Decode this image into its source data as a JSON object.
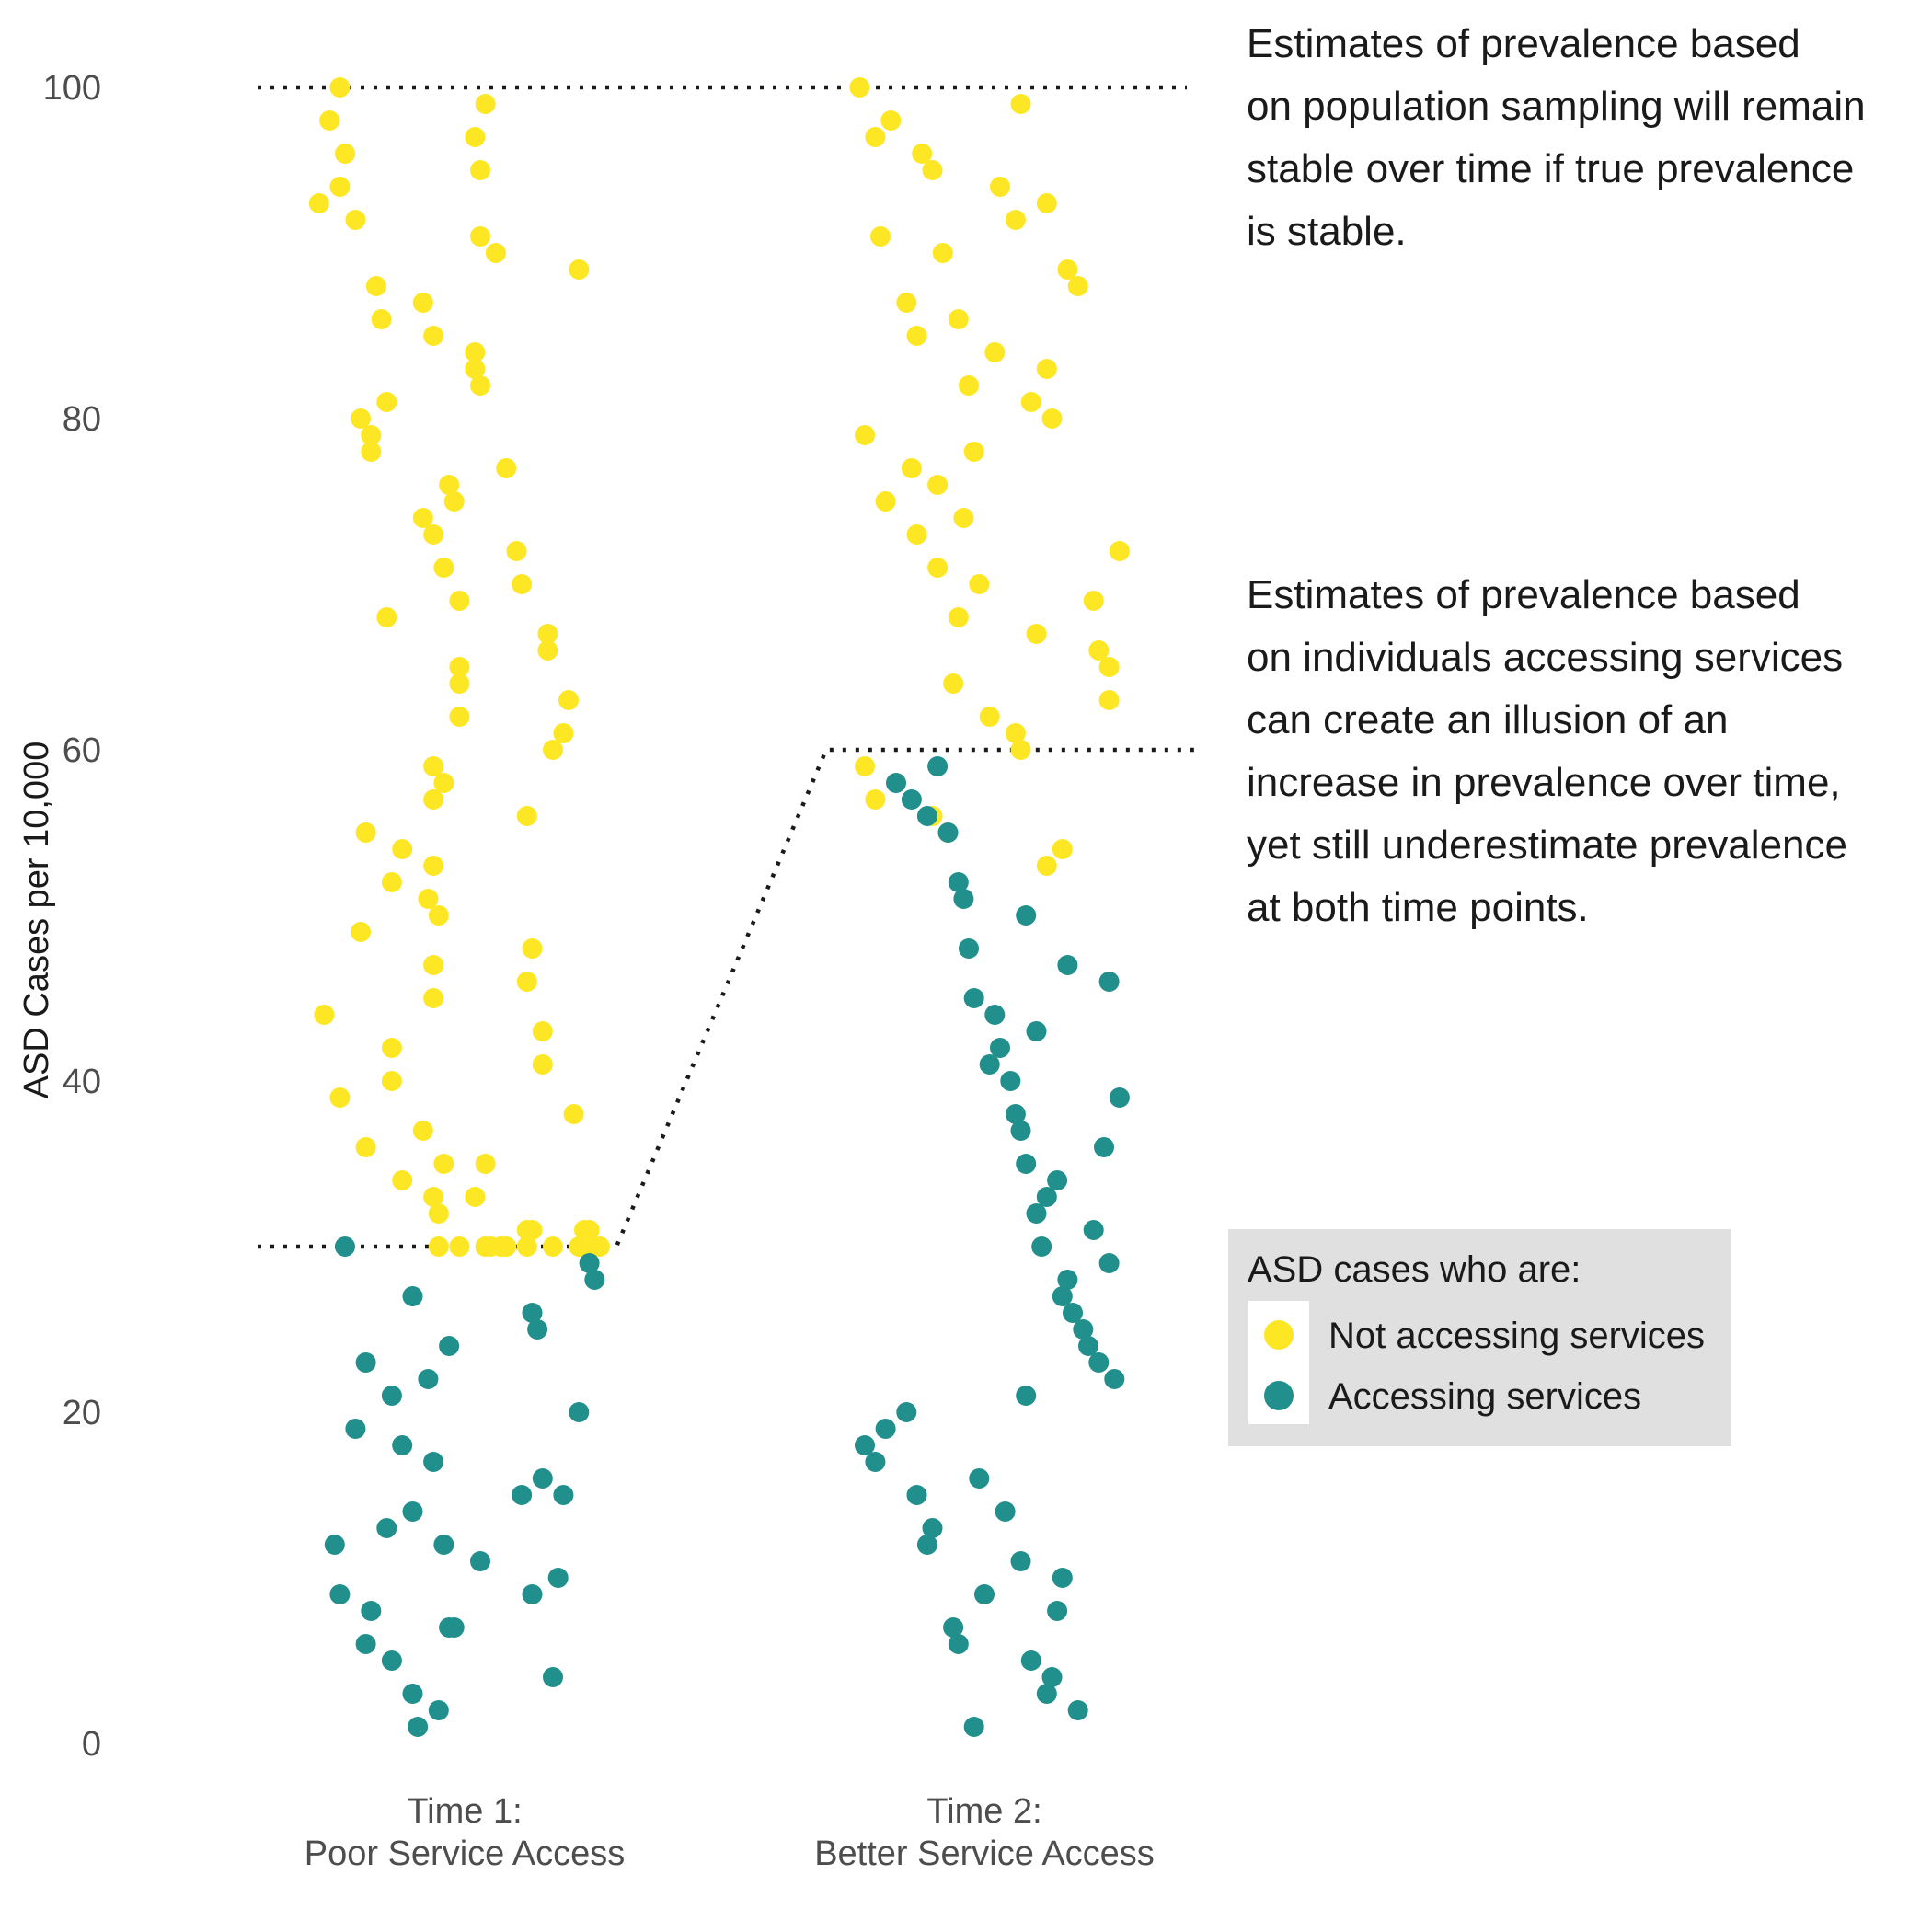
{
  "chart_data": {
    "type": "scatter",
    "ylabel": "ASD Cases per 10,000",
    "xlabel": "",
    "ylim": [
      0,
      100
    ],
    "yticks": [
      0,
      20,
      40,
      60,
      80,
      100
    ],
    "grid": false,
    "categories": [
      {
        "line1": "Time 1:",
        "line2": "Poor Service Access"
      },
      {
        "line1": "Time 2:",
        "line2": "Better Service Access"
      }
    ],
    "colors": {
      "not_accessing": "#fde725",
      "accessing": "#21908c"
    },
    "reference_lines": {
      "true_prevalence": 100,
      "time1_service_estimate": 30,
      "time2_service_estimate": 60
    },
    "annotations": [
      [
        "Estimates of prevalence based",
        "on population sampling will remain",
        "stable over time if true prevalence",
        "is stable."
      ],
      [
        "Estimates of prevalence based",
        "on individuals accessing services",
        "can create an illusion of an",
        "increase in prevalence over time,",
        "yet still underestimate prevalence",
        "at both time points."
      ]
    ],
    "legend": {
      "title": "ASD cases who are:",
      "placement": "right",
      "entries": [
        {
          "label": "Not accessing services",
          "color": "#fde725"
        },
        {
          "label": "Accessing services",
          "color": "#21908c"
        }
      ]
    },
    "series": [
      {
        "name": "Not accessing services",
        "category": 0,
        "x": [
          -0.26,
          -0.23,
          -0.24,
          -0.28,
          -0.21,
          -0.17,
          -0.16,
          -0.15,
          -0.24,
          -0.2,
          -0.18,
          -0.18,
          -0.15,
          -0.19,
          -0.12,
          -0.14,
          -0.2,
          -0.27,
          -0.24,
          -0.19,
          -0.14,
          -0.14,
          -0.12,
          -0.06,
          -0.05,
          -0.04,
          -0.06,
          -0.04,
          -0.06,
          -0.03,
          -0.02,
          -0.08,
          -0.06,
          -0.04,
          -0.01,
          -0.01,
          -0.01,
          -0.01,
          -0.06,
          -0.07,
          -0.05,
          -0.06,
          -0.06,
          -0.08,
          -0.08,
          -0.06,
          0.02,
          0.02,
          0.03,
          0.04,
          0.02,
          0.03,
          0.03,
          0.06,
          0.08,
          0.1,
          0.11,
          0.12,
          0.12,
          0.13,
          0.15,
          0.15,
          0.16,
          0.16,
          0.17,
          0.19,
          0.2,
          0.21,
          0.22,
          0.24,
          0.23,
          0.02,
          0.04,
          0.05,
          0.04,
          0.07,
          0.12,
          0.13,
          -0.01,
          0.12,
          0.22,
          0.26,
          -0.05,
          0.07,
          0.08,
          0.17,
          0.25
        ],
        "y": [
          98,
          96,
          94,
          93,
          92,
          88,
          86,
          81,
          100,
          80,
          79,
          78,
          68,
          55,
          54,
          52,
          49,
          44,
          39,
          36,
          42,
          40,
          34,
          33,
          32,
          35,
          59,
          58,
          57,
          76,
          75,
          74,
          73,
          71,
          69,
          65,
          64,
          62,
          53,
          51,
          50,
          47,
          45,
          37,
          87,
          85,
          84,
          83,
          82,
          99,
          97,
          95,
          91,
          90,
          77,
          72,
          70,
          56,
          46,
          48,
          43,
          41,
          66,
          67,
          60,
          61,
          63,
          38,
          89,
          31,
          31,
          33,
          35,
          30,
          30,
          30,
          31,
          31,
          30,
          30,
          30,
          30,
          30,
          30,
          30,
          30,
          30
        ]
      },
      {
        "name": "Accessing services",
        "category": 0,
        "x": [
          -0.23,
          -0.21,
          -0.19,
          -0.14,
          -0.1,
          -0.12,
          -0.15,
          -0.1,
          -0.07,
          -0.03,
          -0.06,
          -0.03,
          0.03,
          0.13,
          0.14,
          0.15,
          0.17,
          0.18,
          0.19,
          0.22,
          0.24,
          0.25,
          -0.25,
          -0.24,
          -0.19,
          -0.18,
          -0.14,
          -0.1,
          -0.09,
          -0.05,
          -0.04,
          -0.02,
          0.11,
          0.13
        ],
        "y": [
          30,
          19,
          23,
          21,
          27,
          18,
          13,
          14,
          22,
          24,
          17,
          7,
          11,
          26,
          25,
          16,
          4,
          10,
          15,
          20,
          29,
          28,
          12,
          9,
          6,
          8,
          5,
          3,
          1,
          2,
          12,
          7,
          15,
          9
        ]
      },
      {
        "name": "Not accessing services",
        "category": 1,
        "x": [
          -0.24,
          -0.21,
          -0.2,
          -0.18,
          -0.15,
          -0.13,
          -0.12,
          -0.1,
          -0.08,
          -0.05,
          -0.03,
          -0.02,
          0.02,
          0.03,
          0.06,
          0.07,
          0.09,
          0.12,
          0.12,
          0.13,
          0.16,
          0.18,
          0.21,
          0.22,
          0.24,
          0.24,
          0.26,
          -0.23,
          -0.19,
          -0.14,
          -0.13,
          -0.09,
          -0.09,
          -0.05,
          -0.06,
          0.01,
          -0.04,
          -0.01,
          0.06,
          0.1,
          -0.23,
          -0.21,
          -0.1,
          -0.07,
          0.07,
          0.12,
          0.15
        ],
        "y": [
          100,
          97,
          91,
          98,
          87,
          85,
          96,
          95,
          90,
          86,
          82,
          78,
          84,
          94,
          92,
          99,
          81,
          93,
          83,
          80,
          89,
          88,
          69,
          66,
          65,
          63,
          72,
          79,
          75,
          77,
          73,
          71,
          76,
          68,
          64,
          62,
          74,
          70,
          61,
          67,
          59,
          57,
          56,
          55,
          60,
          53,
          54
        ]
      },
      {
        "name": "Accessing services",
        "category": 1,
        "x": [
          -0.17,
          -0.14,
          -0.11,
          -0.09,
          -0.07,
          -0.05,
          -0.04,
          -0.03,
          -0.02,
          0.01,
          0.02,
          0.03,
          0.05,
          0.06,
          0.07,
          0.08,
          0.1,
          0.11,
          0.12,
          0.14,
          0.15,
          0.16,
          0.17,
          0.19,
          0.2,
          0.22,
          0.25,
          -0.23,
          -0.21,
          -0.19,
          -0.15,
          -0.13,
          -0.11,
          -0.1,
          -0.06,
          -0.05,
          -0.02,
          -0.01,
          0.0,
          0.04,
          0.07,
          0.08,
          0.09,
          0.12,
          0.13,
          0.14,
          0.15,
          0.18,
          0.21,
          0.24,
          0.26,
          0.23,
          0.1,
          0.16,
          0.24,
          0.08
        ],
        "y": [
          58,
          57,
          56,
          59,
          55,
          52,
          51,
          48,
          45,
          41,
          44,
          42,
          40,
          38,
          37,
          35,
          32,
          30,
          33,
          34,
          27,
          28,
          26,
          25,
          24,
          23,
          22,
          18,
          17,
          19,
          20,
          15,
          12,
          13,
          7,
          6,
          1,
          16,
          9,
          14,
          11,
          21,
          5,
          3,
          4,
          8,
          10,
          2,
          31,
          29,
          39,
          36,
          43,
          47,
          46,
          50
        ]
      }
    ]
  }
}
